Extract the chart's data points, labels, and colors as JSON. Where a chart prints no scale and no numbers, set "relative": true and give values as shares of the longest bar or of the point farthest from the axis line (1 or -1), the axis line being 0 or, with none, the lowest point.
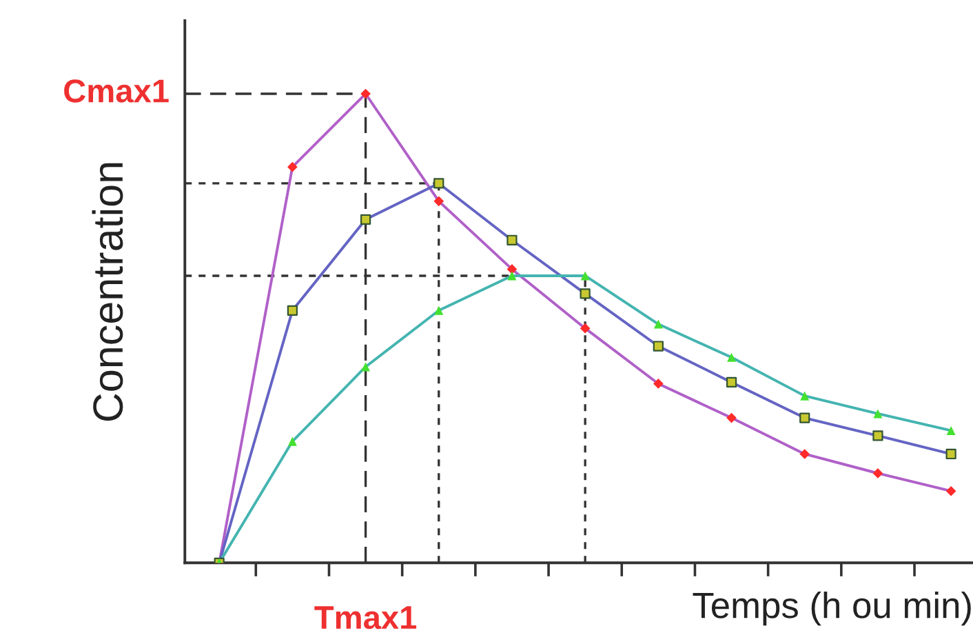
{
  "chart_data": {
    "type": "line",
    "relative": true,
    "xlabel": "Temps (h ou min)",
    "ylabel": "Concentration",
    "categories": [
      null,
      null,
      null,
      null,
      null,
      null,
      null,
      null,
      null,
      null,
      null
    ],
    "tick_labels": false,
    "grid": false,
    "line_style": "solid",
    "series": [
      {
        "color": "#b060c8",
        "colors": [
          "#ff2a2a",
          "#ff2a2a",
          "#ff2a2a",
          "#ff2a2a",
          "#ff2a2a",
          "#ff2a2a",
          "#ff2a2a",
          "#ff2a2a",
          "#ff2a2a",
          "#ff2a2a",
          "#ff2a2a"
        ],
        "marker": "diamond",
        "values": [
          0,
          0.844,
          1,
          0.771,
          0.626,
          0.5,
          0.382,
          0.309,
          0.232,
          0.191,
          0.153
        ]
      },
      {
        "color": "#6464c4",
        "colors": [
          "#c8c830",
          "#c8c830",
          "#c8c830",
          "#c8c830",
          "#c8c830",
          "#c8c830",
          "#c8c830",
          "#c8c830",
          "#c8c830",
          "#c8c830",
          "#c8c830"
        ],
        "marker": "square",
        "values": [
          0,
          0.538,
          0.732,
          0.809,
          0.688,
          0.574,
          0.462,
          0.385,
          0.309,
          0.271,
          0.232
        ]
      },
      {
        "color": "#44b4b0",
        "colors": [
          "#44e030",
          "#44e030",
          "#44e030",
          "#44e030",
          "#44e030",
          "#44e030",
          "#44e030",
          "#44e030",
          "#44e030",
          "#44e030",
          "#44e030"
        ],
        "marker": "triangle",
        "values": [
          0,
          0.259,
          0.418,
          0.538,
          0.612,
          0.612,
          0.509,
          0.438,
          0.356,
          0.318,
          0.282
        ]
      }
    ],
    "ref_lines": [
      {
        "axis": "y",
        "value": 1,
        "label": "Cmax1",
        "color": "#333333",
        "line_style": "dashed"
      },
      {
        "axis": "y",
        "value": 0.809,
        "label": null,
        "color": "#333333",
        "line_style": "dotted"
      },
      {
        "axis": "y",
        "value": 0.612,
        "label": null,
        "color": "#333333",
        "line_style": "dotted"
      }
    ],
    "annotations": [
      "Tmax1"
    ]
  }
}
